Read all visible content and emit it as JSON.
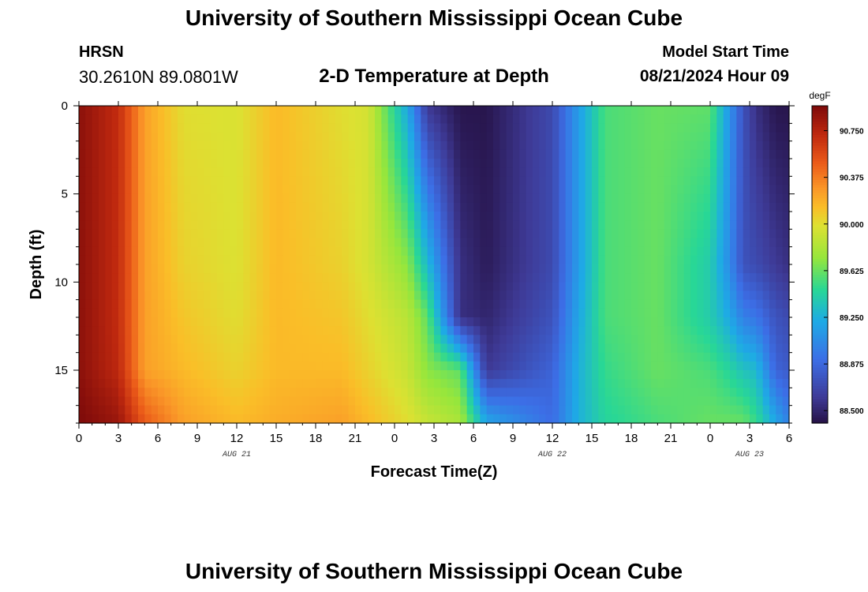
{
  "header": {
    "title": "University of Southern Mississippi Ocean Cube",
    "station": "HRSN",
    "coords": "30.2610N  89.0801W",
    "subtitle": "2-D Temperature at Depth",
    "model_start_label": "Model Start Time",
    "model_start_value": "08/21/2024 Hour 09"
  },
  "footer": {
    "title": "University of Southern Mississippi Ocean Cube"
  },
  "chart_data": {
    "type": "heatmap",
    "xlabel": "Forecast Time(Z)",
    "ylabel": "Depth (ft)",
    "x_tick_labels": [
      "0",
      "3",
      "6",
      "9",
      "12",
      "15",
      "18",
      "21",
      "0",
      "3",
      "6",
      "9",
      "12",
      "15",
      "18",
      "21",
      "0",
      "3",
      "6"
    ],
    "x_hours": [
      0,
      3,
      6,
      9,
      12,
      15,
      18,
      21,
      24,
      27,
      30,
      33,
      36,
      39,
      42,
      45,
      48,
      51,
      54
    ],
    "x_date_labels": [
      {
        "text": "AUG 21",
        "hour": 12
      },
      {
        "text": "AUG 22",
        "hour": 36
      },
      {
        "text": "AUG 23",
        "hour": 51
      }
    ],
    "xlim": [
      0,
      54
    ],
    "y_tick_labels": [
      "0",
      "5",
      "10",
      "15"
    ],
    "y_ticks": [
      0,
      5,
      10,
      15
    ],
    "ylim": [
      0,
      18
    ],
    "y_inverted": true,
    "colorbar": {
      "unit": "degF",
      "tick_labels": [
        "90.750",
        "90.375",
        "90.000",
        "89.625",
        "89.250",
        "88.875",
        "88.500"
      ],
      "tick_values": [
        90.75,
        90.375,
        90.0,
        89.625,
        89.25,
        88.875,
        88.5
      ],
      "range": [
        88.4,
        90.95
      ]
    },
    "profile_times": [
      0,
      3,
      5,
      8,
      12,
      15,
      20,
      22,
      25,
      26.5,
      29,
      31,
      36,
      38,
      40,
      44,
      48,
      49.5,
      50.5,
      51.5,
      53,
      54
    ],
    "profile_depths": [
      0,
      9,
      12,
      15,
      18
    ],
    "profile_values": [
      [
        90.9,
        90.9,
        90.9,
        90.9,
        90.95
      ],
      [
        90.7,
        90.7,
        90.7,
        90.72,
        90.85
      ],
      [
        90.25,
        90.25,
        90.25,
        90.25,
        90.5
      ],
      [
        90.0,
        90.05,
        90.1,
        90.15,
        90.25
      ],
      [
        89.97,
        89.98,
        90.0,
        90.05,
        90.15
      ],
      [
        90.15,
        90.15,
        90.15,
        90.15,
        90.2
      ],
      [
        90.0,
        90.05,
        90.1,
        90.15,
        90.25
      ],
      [
        89.95,
        89.95,
        90.0,
        90.05,
        90.15
      ],
      [
        89.2,
        89.7,
        89.85,
        89.9,
        90.0
      ],
      [
        88.6,
        89.3,
        89.6,
        89.7,
        89.9
      ],
      [
        88.42,
        88.55,
        88.55,
        89.6,
        89.8
      ],
      [
        88.42,
        88.45,
        88.5,
        88.6,
        89.2
      ],
      [
        88.7,
        88.7,
        88.75,
        88.85,
        88.9
      ],
      [
        89.15,
        89.15,
        89.2,
        89.25,
        89.25
      ],
      [
        89.55,
        89.55,
        89.55,
        89.5,
        89.45
      ],
      [
        89.62,
        89.62,
        89.62,
        89.62,
        89.55
      ],
      [
        89.6,
        89.4,
        89.4,
        89.55,
        89.62
      ],
      [
        89.1,
        89.05,
        89.2,
        89.45,
        89.62
      ],
      [
        88.75,
        88.75,
        89.0,
        89.35,
        89.62
      ],
      [
        88.55,
        88.7,
        88.95,
        89.3,
        89.5
      ],
      [
        88.42,
        88.6,
        88.75,
        88.85,
        89.2
      ],
      [
        88.42,
        88.55,
        88.7,
        88.8,
        89.0
      ]
    ]
  }
}
